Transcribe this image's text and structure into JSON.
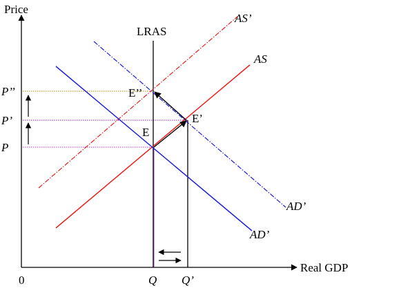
{
  "axes": {
    "y_label": "Price",
    "x_label": "Real GDP",
    "origin_label": "0"
  },
  "price_labels": {
    "p": "P",
    "p1": "P’",
    "p2": "P’’"
  },
  "quantity_labels": {
    "q": "Q",
    "q1": "Q’"
  },
  "curves": {
    "lras": "LRAS",
    "as": "AS",
    "as_shifted": "AS’",
    "ad_left": "AD’",
    "ad_right": "AD’"
  },
  "points": {
    "e": "E",
    "e1": "E’",
    "e2": "E’’"
  },
  "colors": {
    "axis": "#000000",
    "as": "#e8201e",
    "as_shifted": "#e8201e",
    "ad": "#1f1fd6",
    "ad_shifted": "#1f1fd6",
    "lras": "#000000",
    "guide_p": "#cc33cc",
    "guide_p1": "#8822aa",
    "guide_p2": "#b8860b"
  }
}
